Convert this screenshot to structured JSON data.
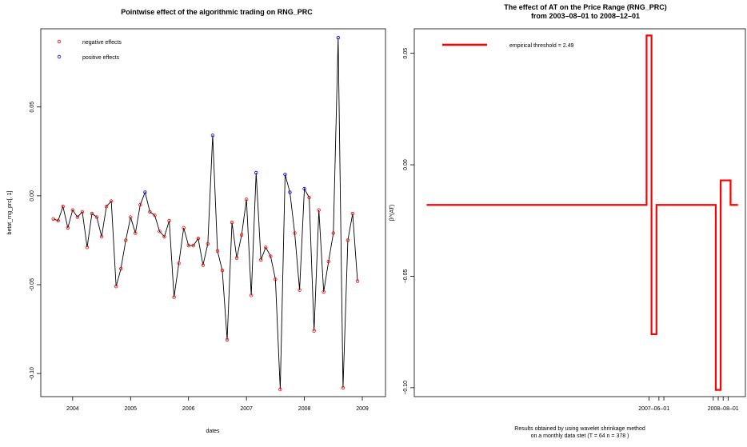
{
  "chart_data": [
    {
      "type": "scatter",
      "title": "Pointwise effect of the algorithmic trading on RNG_PRC",
      "xlabel": "dates",
      "ylabel": "betat_rng_prc[, 1]",
      "x_tick_labels": [
        "2004",
        "2005",
        "2006",
        "2007",
        "2008",
        "2009"
      ],
      "x_ticks": [
        2004,
        2005,
        2006,
        2007,
        2008,
        2009
      ],
      "y_ticks": [
        -0.1,
        -0.05,
        0.0,
        0.05
      ],
      "y_tick_labels": [
        "-0.10",
        "-0.05",
        "0.00",
        "0.05"
      ],
      "xlim": [
        2003.45,
        2009.4
      ],
      "ylim": [
        -0.113,
        0.094
      ],
      "legend": {
        "position": "top-left",
        "entries": [
          "negative effects",
          "positive effects"
        ]
      },
      "colors": {
        "negative": "#ff0000",
        "positive": "#0000ff",
        "line": "#000000"
      },
      "series": [
        {
          "name": "betat_rng_prc",
          "x": [
            2003.667,
            2003.75,
            2003.833,
            2003.917,
            2004.0,
            2004.083,
            2004.167,
            2004.25,
            2004.333,
            2004.417,
            2004.5,
            2004.583,
            2004.667,
            2004.75,
            2004.833,
            2004.917,
            2005.0,
            2005.083,
            2005.167,
            2005.25,
            2005.333,
            2005.417,
            2005.5,
            2005.583,
            2005.667,
            2005.75,
            2005.833,
            2005.917,
            2006.0,
            2006.083,
            2006.167,
            2006.25,
            2006.333,
            2006.417,
            2006.5,
            2006.583,
            2006.667,
            2006.75,
            2006.833,
            2006.917,
            2007.0,
            2007.083,
            2007.167,
            2007.25,
            2007.333,
            2007.417,
            2007.5,
            2007.583,
            2007.667,
            2007.75,
            2007.833,
            2007.917,
            2008.0,
            2008.083,
            2008.167,
            2008.25,
            2008.333,
            2008.417,
            2008.5,
            2008.583,
            2008.667,
            2008.75,
            2008.833,
            2008.917
          ],
          "y": [
            -0.013,
            -0.014,
            -0.006,
            -0.018,
            -0.008,
            -0.012,
            -0.009,
            -0.029,
            -0.01,
            -0.012,
            -0.023,
            -0.006,
            -0.003,
            -0.051,
            -0.041,
            -0.025,
            -0.012,
            -0.021,
            -0.005,
            0.002,
            -0.009,
            -0.011,
            -0.02,
            -0.023,
            -0.014,
            -0.057,
            -0.038,
            -0.018,
            -0.028,
            -0.028,
            -0.024,
            -0.039,
            -0.027,
            0.034,
            -0.031,
            -0.042,
            -0.081,
            -0.015,
            -0.035,
            -0.022,
            -0.002,
            -0.056,
            0.013,
            -0.036,
            -0.029,
            -0.034,
            -0.047,
            -0.109,
            0.012,
            0.002,
            -0.021,
            -0.053,
            0.004,
            -0.001,
            -0.076,
            -0.008,
            -0.054,
            -0.037,
            -0.021,
            0.089,
            -0.108,
            -0.025,
            -0.01,
            -0.048
          ]
        }
      ]
    },
    {
      "type": "line",
      "title": "The effect of AT on the Price Range (RNG_PRC)",
      "subtitle": "from  2003–08–01  to  2008–12–01",
      "xlabel_lines": [
        "Results obtained by using wavelet shrinkage method",
        "on a monthly data stet (T =  64 n =  378 )"
      ],
      "ylabel": "β^(AT)",
      "x_tick_labels": [
        "2007–06–01",
        "2008–08–01"
      ],
      "x_ticks": [
        47,
        61
      ],
      "x_minor_ticks": [
        46,
        48,
        49,
        59,
        60,
        61,
        62
      ],
      "y_ticks": [
        -0.1,
        -0.05,
        0.0,
        0.05
      ],
      "y_tick_labels": [
        "−0.10",
        "−0.05",
        "0.00",
        "0.05"
      ],
      "xlim": [
        -1.5,
        65.5
      ],
      "ylim": [
        -0.104,
        0.061
      ],
      "legend": {
        "position": "top-left",
        "entries": [
          "empirical threshold =  2.49"
        ]
      },
      "colors": {
        "line": "#ff0000"
      },
      "series": [
        {
          "name": "empirical threshold =  2.49",
          "step_x": [
            1,
            45.5,
            45.5,
            46.5,
            46.5,
            47.5,
            47.5,
            59.5,
            59.5,
            60.5,
            60.5,
            62.5,
            62.5,
            64
          ],
          "step_y": [
            -0.018,
            -0.018,
            0.058,
            0.058,
            -0.076,
            -0.076,
            -0.018,
            -0.018,
            -0.101,
            -0.101,
            -0.007,
            -0.007,
            -0.018,
            -0.018
          ]
        }
      ]
    }
  ]
}
